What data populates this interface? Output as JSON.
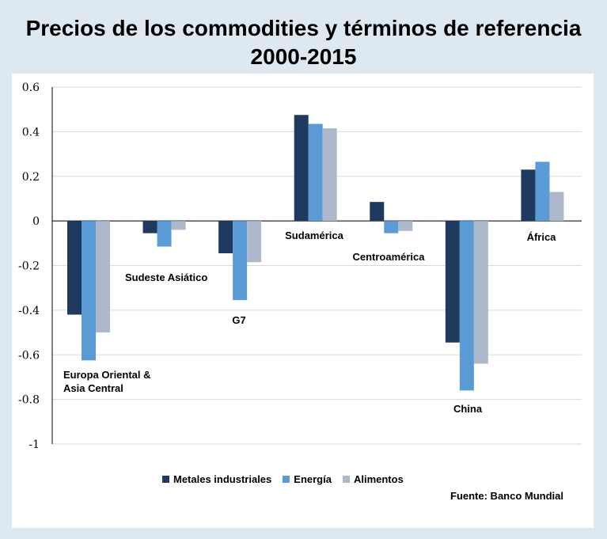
{
  "title_line1": "Precios de los commodities y términos de referencia",
  "title_line2": "2000-2015",
  "source": "Fuente: Banco Mundial",
  "chart_data": {
    "type": "bar",
    "categories": [
      [
        "Europa Oriental &",
        "Asia Central"
      ],
      [
        "Sudeste Asiático"
      ],
      [
        "G7"
      ],
      [
        "Sudamérica"
      ],
      [
        "Centroamérica"
      ],
      [
        "China"
      ],
      [
        "África"
      ]
    ],
    "series": [
      {
        "name": "Metales industriales",
        "color": "#1f3a5f",
        "values": [
          -0.42,
          -0.055,
          -0.145,
          0.475,
          0.085,
          -0.545,
          0.23
        ]
      },
      {
        "name": "Energía",
        "color": "#5b9bd5",
        "values": [
          -0.625,
          -0.115,
          -0.355,
          0.435,
          -0.055,
          -0.76,
          0.265
        ]
      },
      {
        "name": "Alimentos",
        "color": "#adb9ca",
        "values": [
          -0.5,
          -0.04,
          -0.185,
          0.415,
          -0.045,
          -0.64,
          0.13
        ]
      }
    ],
    "ylim": [
      -1,
      0.6
    ],
    "yticks": [
      "0.6",
      "0.4",
      "0.2",
      "0",
      "-0.2",
      "-0.4",
      "-0.6",
      "-0.8",
      "-1"
    ],
    "grid": true,
    "legend_position": "bottom"
  }
}
